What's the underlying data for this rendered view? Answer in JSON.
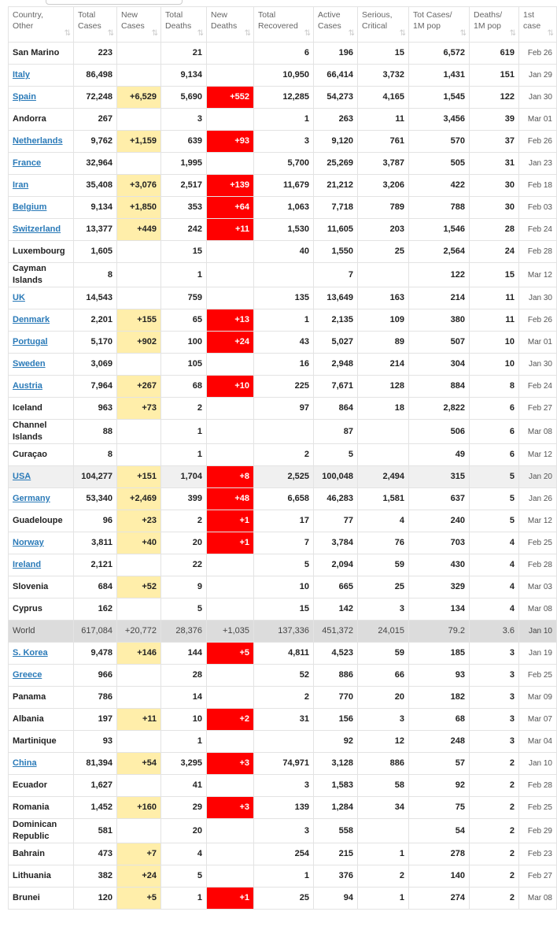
{
  "table": {
    "headers": [
      "Country, Other",
      "Total Cases",
      "New Cases",
      "Total Deaths",
      "New Deaths",
      "Total Recovered",
      "Active Cases",
      "Serious, Critical",
      "Tot Cases/ 1M pop",
      "Deaths/ 1M pop",
      "1st case"
    ],
    "rows": [
      [
        "San Marino",
        "223",
        null,
        "21",
        null,
        "6",
        "196",
        "15",
        "6,572",
        "619",
        "Feb 26"
      ],
      [
        "Italy",
        "86,498",
        null,
        "9,134",
        null,
        "10,950",
        "66,414",
        "3,732",
        "1,431",
        "151",
        "Jan 29"
      ],
      [
        "Spain",
        "72,248",
        "+6,529",
        "5,690",
        "+552",
        "12,285",
        "54,273",
        "4,165",
        "1,545",
        "122",
        "Jan 30"
      ],
      [
        "Andorra",
        "267",
        null,
        "3",
        null,
        "1",
        "263",
        "11",
        "3,456",
        "39",
        "Mar 01"
      ],
      [
        "Netherlands",
        "9,762",
        "+1,159",
        "639",
        "+93",
        "3",
        "9,120",
        "761",
        "570",
        "37",
        "Feb 26"
      ],
      [
        "France",
        "32,964",
        null,
        "1,995",
        null,
        "5,700",
        "25,269",
        "3,787",
        "505",
        "31",
        "Jan 23"
      ],
      [
        "Iran",
        "35,408",
        "+3,076",
        "2,517",
        "+139",
        "11,679",
        "21,212",
        "3,206",
        "422",
        "30",
        "Feb 18"
      ],
      [
        "Belgium",
        "9,134",
        "+1,850",
        "353",
        "+64",
        "1,063",
        "7,718",
        "789",
        "788",
        "30",
        "Feb 03"
      ],
      [
        "Switzerland",
        "13,377",
        "+449",
        "242",
        "+11",
        "1,530",
        "11,605",
        "203",
        "1,546",
        "28",
        "Feb 24"
      ],
      [
        "Luxembourg",
        "1,605",
        null,
        "15",
        null,
        "40",
        "1,550",
        "25",
        "2,564",
        "24",
        "Feb 28"
      ],
      [
        "Cayman Islands",
        "8",
        null,
        "1",
        null,
        null,
        "7",
        null,
        "122",
        "15",
        "Mar 12"
      ],
      [
        "UK",
        "14,543",
        null,
        "759",
        null,
        "135",
        "13,649",
        "163",
        "214",
        "11",
        "Jan 30"
      ],
      [
        "Denmark",
        "2,201",
        "+155",
        "65",
        "+13",
        "1",
        "2,135",
        "109",
        "380",
        "11",
        "Feb 26"
      ],
      [
        "Portugal",
        "5,170",
        "+902",
        "100",
        "+24",
        "43",
        "5,027",
        "89",
        "507",
        "10",
        "Mar 01"
      ],
      [
        "Sweden",
        "3,069",
        null,
        "105",
        null,
        "16",
        "2,948",
        "214",
        "304",
        "10",
        "Jan 30"
      ],
      [
        "Austria",
        "7,964",
        "+267",
        "68",
        "+10",
        "225",
        "7,671",
        "128",
        "884",
        "8",
        "Feb 24"
      ],
      [
        "Iceland",
        "963",
        "+73",
        "2",
        null,
        "97",
        "864",
        "18",
        "2,822",
        "6",
        "Feb 27"
      ],
      [
        "Channel Islands",
        "88",
        null,
        "1",
        null,
        null,
        "87",
        null,
        "506",
        "6",
        "Mar 08"
      ],
      [
        "Curaçao",
        "8",
        null,
        "1",
        null,
        "2",
        "5",
        null,
        "49",
        "6",
        "Mar 12"
      ],
      [
        "USA",
        "104,277",
        "+151",
        "1,704",
        "+8",
        "2,525",
        "100,048",
        "2,494",
        "315",
        "5",
        "Jan 20"
      ],
      [
        "Germany",
        "53,340",
        "+2,469",
        "399",
        "+48",
        "6,658",
        "46,283",
        "1,581",
        "637",
        "5",
        "Jan 26"
      ],
      [
        "Guadeloupe",
        "96",
        "+23",
        "2",
        "+1",
        "17",
        "77",
        "4",
        "240",
        "5",
        "Mar 12"
      ],
      [
        "Norway",
        "3,811",
        "+40",
        "20",
        "+1",
        "7",
        "3,784",
        "76",
        "703",
        "4",
        "Feb 25"
      ],
      [
        "Ireland",
        "2,121",
        null,
        "22",
        null,
        "5",
        "2,094",
        "59",
        "430",
        "4",
        "Feb 28"
      ],
      [
        "Slovenia",
        "684",
        "+52",
        "9",
        null,
        "10",
        "665",
        "25",
        "329",
        "4",
        "Mar 03"
      ],
      [
        "Cyprus",
        "162",
        null,
        "5",
        null,
        "15",
        "142",
        "3",
        "134",
        "4",
        "Mar 08"
      ],
      [
        "World",
        "617,084",
        "+20,772",
        "28,376",
        "+1,035",
        "137,336",
        "451,372",
        "24,015",
        "79.2",
        "3.6",
        "Jan 10"
      ],
      [
        "S. Korea",
        "9,478",
        "+146",
        "144",
        "+5",
        "4,811",
        "4,523",
        "59",
        "185",
        "3",
        "Jan 19"
      ],
      [
        "Greece",
        "966",
        null,
        "28",
        null,
        "52",
        "886",
        "66",
        "93",
        "3",
        "Feb 25"
      ],
      [
        "Panama",
        "786",
        null,
        "14",
        null,
        "2",
        "770",
        "20",
        "182",
        "3",
        "Mar 09"
      ],
      [
        "Albania",
        "197",
        "+11",
        "10",
        "+2",
        "31",
        "156",
        "3",
        "68",
        "3",
        "Mar 07"
      ],
      [
        "Martinique",
        "93",
        null,
        "1",
        null,
        null,
        "92",
        "12",
        "248",
        "3",
        "Mar 04"
      ],
      [
        "China",
        "81,394",
        "+54",
        "3,295",
        "+3",
        "74,971",
        "3,128",
        "886",
        "57",
        "2",
        "Jan 10"
      ],
      [
        "Ecuador",
        "1,627",
        null,
        "41",
        null,
        "3",
        "1,583",
        "58",
        "92",
        "2",
        "Feb 28"
      ],
      [
        "Romania",
        "1,452",
        "+160",
        "29",
        "+3",
        "139",
        "1,284",
        "34",
        "75",
        "2",
        "Feb 25"
      ],
      [
        "Dominican Republic",
        "581",
        null,
        "20",
        null,
        "3",
        "558",
        null,
        "54",
        "2",
        "Feb 29"
      ],
      [
        "Bahrain",
        "473",
        "+7",
        "4",
        null,
        "254",
        "215",
        "1",
        "278",
        "2",
        "Feb 23"
      ],
      [
        "Lithuania",
        "382",
        "+24",
        "5",
        null,
        "1",
        "376",
        "2",
        "140",
        "2",
        "Feb 27"
      ],
      [
        "Brunei",
        "120",
        "+5",
        "1",
        "+1",
        "25",
        "94",
        "1",
        "274",
        "2",
        "Mar 08"
      ]
    ]
  }
}
